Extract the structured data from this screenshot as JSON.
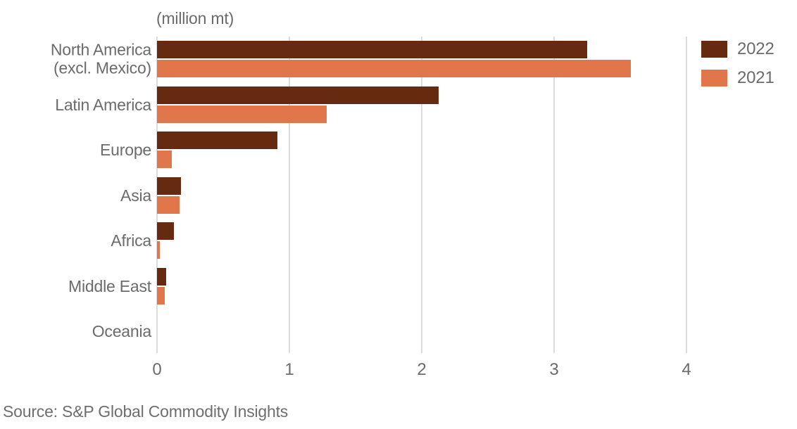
{
  "figure": {
    "unit_label": "(million mt)",
    "source": "Source: S&P Global Commodity Insights"
  },
  "legend": {
    "items": [
      {
        "label": "2022",
        "color": "#662A10"
      },
      {
        "label": "2021",
        "color": "#E0764A"
      }
    ]
  },
  "chart_data": {
    "type": "bar",
    "orientation": "horizontal",
    "title": "(million mt)",
    "categories": [
      "North America\n(excl. Mexico)",
      "Latin America",
      "Europe",
      "Asia",
      "Africa",
      "Middle East",
      "Oceania"
    ],
    "series": [
      {
        "name": "2022",
        "color": "#662A10",
        "values": [
          3.25,
          2.13,
          0.91,
          0.18,
          0.13,
          0.07,
          0
        ]
      },
      {
        "name": "2021",
        "color": "#E0764A",
        "values": [
          3.58,
          1.28,
          0.11,
          0.17,
          0.02,
          0.06,
          0
        ]
      }
    ],
    "xlabel": "",
    "ylabel": "",
    "xlim": [
      0,
      4
    ],
    "xticks": [
      "0",
      "1",
      "2",
      "3",
      "4"
    ],
    "grid": true,
    "gridline_color": "#DCDCDC",
    "text_color": "#6B6B6B",
    "legend_position": "top-right"
  }
}
